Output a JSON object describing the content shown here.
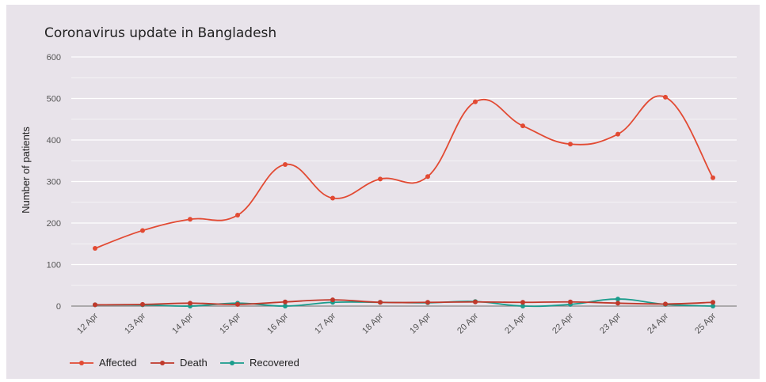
{
  "chart_data": {
    "type": "line",
    "title": "Coronavirus update in Bangladesh",
    "xlabel": "",
    "ylabel": "Number of patients",
    "ylim": [
      0,
      600
    ],
    "yticks": [
      0,
      100,
      200,
      300,
      400,
      500,
      600
    ],
    "grid": true,
    "legend_position": "bottom-left",
    "categories": [
      "12 Apr",
      "13 Apr",
      "14 Apr",
      "15 Apr",
      "16 Apr",
      "17 Apr",
      "18 Apr",
      "19 Apr",
      "20 Apr",
      "21 Apr",
      "22 Apr",
      "23 Apr",
      "24 Apr",
      "25 Apr"
    ],
    "series": [
      {
        "name": "Affected",
        "color": "#e24a33",
        "values": [
          139,
          182,
          209,
          219,
          341,
          260,
          306,
          312,
          492,
          434,
          390,
          414,
          503,
          309
        ]
      },
      {
        "name": "Death",
        "color": "#c0392b",
        "values": [
          3,
          4,
          7,
          4,
          10,
          15,
          9,
          9,
          10,
          9,
          10,
          7,
          5,
          9
        ]
      },
      {
        "name": "Recovered",
        "color": "#1a9c8c",
        "values": [
          3,
          3,
          0,
          7,
          0,
          9,
          9,
          8,
          11,
          0,
          4,
          17,
          4,
          0
        ]
      }
    ]
  }
}
